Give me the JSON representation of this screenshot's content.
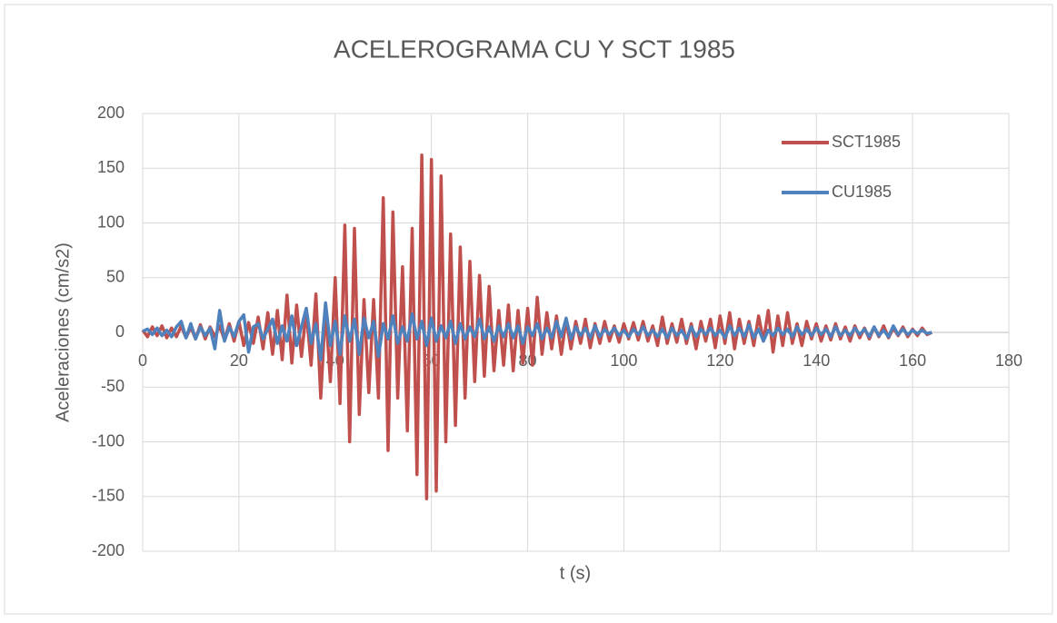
{
  "chart_data": {
    "type": "line",
    "title": "ACELEROGRAMA CU Y SCT 1985",
    "xlabel": "t (s)",
    "ylabel": "Aceleraciones (cm/s2)",
    "x": [
      0,
      1,
      2,
      3,
      4,
      5,
      6,
      7,
      8,
      9,
      10,
      11,
      12,
      13,
      14,
      15,
      16,
      17,
      18,
      19,
      20,
      21,
      22,
      23,
      24,
      25,
      26,
      27,
      28,
      29,
      30,
      31,
      32,
      33,
      34,
      35,
      36,
      37,
      38,
      39,
      40,
      41,
      42,
      43,
      44,
      45,
      46,
      47,
      48,
      49,
      50,
      51,
      52,
      53,
      54,
      55,
      56,
      57,
      58,
      59,
      60,
      61,
      62,
      63,
      64,
      65,
      66,
      67,
      68,
      69,
      70,
      71,
      72,
      73,
      74,
      75,
      76,
      77,
      78,
      79,
      80,
      81,
      82,
      83,
      84,
      85,
      86,
      87,
      88,
      89,
      90,
      91,
      92,
      93,
      94,
      95,
      96,
      97,
      98,
      99,
      100,
      101,
      102,
      103,
      104,
      105,
      106,
      107,
      108,
      109,
      110,
      111,
      112,
      113,
      114,
      115,
      116,
      117,
      118,
      119,
      120,
      121,
      122,
      123,
      124,
      125,
      126,
      127,
      128,
      129,
      130,
      131,
      132,
      133,
      134,
      135,
      136,
      137,
      138,
      139,
      140,
      141,
      142,
      143,
      144,
      145,
      146,
      147,
      148,
      149,
      150,
      151,
      152,
      153,
      154,
      155,
      156,
      157,
      158,
      159,
      160,
      161,
      162,
      163,
      164
    ],
    "series": [
      {
        "name": "SCT1985",
        "color": "#c0504d",
        "values": [
          2,
          -4,
          5,
          -3,
          6,
          -5,
          4,
          -4,
          6,
          -5,
          5,
          -6,
          7,
          -6,
          5,
          -4,
          6,
          -7,
          8,
          -8,
          10,
          -12,
          9,
          -10,
          14,
          -15,
          18,
          -20,
          20,
          -25,
          34,
          -28,
          25,
          -22,
          20,
          -30,
          35,
          -60,
          22,
          -45,
          50,
          -65,
          98,
          -100,
          95,
          -75,
          30,
          -55,
          30,
          -60,
          123,
          -108,
          110,
          -60,
          60,
          -90,
          95,
          -130,
          162,
          -152,
          158,
          -145,
          143,
          -100,
          90,
          -85,
          78,
          -60,
          65,
          -45,
          52,
          -40,
          42,
          -35,
          20,
          -30,
          25,
          -35,
          20,
          -28,
          22,
          -30,
          32,
          -20,
          18,
          -15,
          15,
          -20,
          12,
          -15,
          10,
          -10,
          12,
          -14,
          8,
          -10,
          10,
          -8,
          6,
          -9,
          8,
          -6,
          9,
          -7,
          10,
          -8,
          6,
          -12,
          14,
          -10,
          8,
          -9,
          12,
          -10,
          8,
          -15,
          10,
          -8,
          12,
          -14,
          15,
          -10,
          18,
          -15,
          12,
          -10,
          10,
          -12,
          15,
          -8,
          20,
          -18,
          15,
          -12,
          18,
          -10,
          8,
          -12,
          10,
          -6,
          8,
          -8,
          6,
          -7,
          8,
          -6,
          5,
          -8,
          6,
          -5,
          4,
          -6,
          5,
          -4,
          6,
          -5,
          4,
          -3,
          5,
          -4,
          3,
          -3,
          4,
          -2,
          0
        ]
      },
      {
        "name": "CU1985",
        "color": "#4f81bd",
        "values": [
          1,
          3,
          -2,
          4,
          -3,
          2,
          -4,
          5,
          10,
          -5,
          8,
          -6,
          5,
          -3,
          4,
          -15,
          20,
          -8,
          5,
          -4,
          10,
          16,
          -18,
          5,
          8,
          -6,
          3,
          12,
          -10,
          6,
          -8,
          15,
          -12,
          5,
          22,
          -10,
          8,
          -25,
          27,
          -12,
          10,
          -20,
          15,
          -8,
          12,
          -20,
          13,
          -5,
          10,
          -22,
          8,
          -6,
          15,
          -10,
          5,
          -8,
          17,
          -6,
          10,
          -12,
          13,
          -8,
          6,
          -5,
          10,
          -10,
          8,
          -6,
          5,
          -4,
          12,
          -6,
          5,
          -8,
          6,
          -4,
          8,
          -5,
          6,
          -10,
          5,
          -3,
          8,
          -6,
          4,
          -5,
          10,
          -4,
          13,
          -6,
          5,
          -3,
          4,
          -5,
          6,
          -4,
          3,
          -2,
          4,
          -3,
          2,
          -4,
          3,
          -2,
          5,
          -3,
          2,
          -4,
          3,
          -5,
          4,
          -3,
          2,
          -6,
          5,
          -4,
          3,
          -2,
          4,
          -3,
          2,
          -5,
          6,
          -3,
          4,
          -4,
          7,
          -5,
          3,
          -8,
          2,
          -3,
          4,
          -2,
          3,
          -4,
          5,
          -2,
          3,
          -3,
          4,
          -2,
          3,
          -4,
          5,
          -3,
          2,
          -3,
          4,
          -2,
          3,
          -4,
          5,
          -3,
          2,
          -4,
          6,
          -2,
          3,
          -2,
          2,
          -1,
          2,
          -1,
          0
        ]
      }
    ],
    "xlim": [
      0,
      180
    ],
    "xticks": [
      0,
      20,
      40,
      60,
      80,
      100,
      120,
      140,
      160,
      180
    ],
    "ylim": [
      -200,
      200
    ],
    "yticks": [
      -200,
      -150,
      -100,
      -50,
      0,
      50,
      100,
      150,
      200
    ],
    "grid": true,
    "legend": "upper right"
  }
}
